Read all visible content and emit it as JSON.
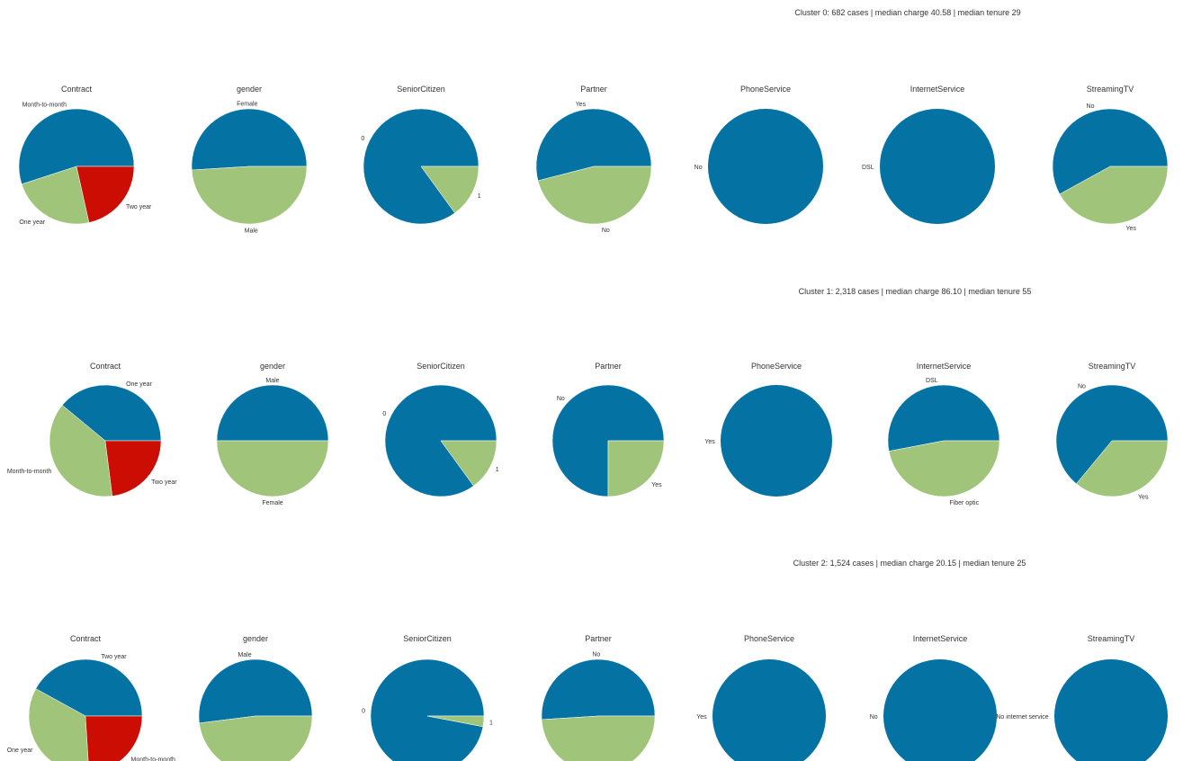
{
  "colors": {
    "blue": "#0473a3",
    "green": "#a0c57a",
    "red": "#cc0d03"
  },
  "chart_data": {
    "type": "pie",
    "clusters": [
      {
        "title": "Cluster 0: 682 cases | median charge 40.58 | median tenure 29",
        "pies": [
          {
            "title": "Contract",
            "slices": [
              {
                "label": "Month-to-month",
                "value": 0.55
              },
              {
                "label": "One year",
                "value": 0.235
              },
              {
                "label": "Two year",
                "value": 0.215
              }
            ]
          },
          {
            "title": "gender",
            "slices": [
              {
                "label": "Female",
                "value": 0.51
              },
              {
                "label": "Male",
                "value": 0.49
              }
            ]
          },
          {
            "title": "SeniorCitizen",
            "slices": [
              {
                "label": "0",
                "value": 0.85
              },
              {
                "label": "1",
                "value": 0.15
              }
            ]
          },
          {
            "title": "Partner",
            "slices": [
              {
                "label": "Yes",
                "value": 0.54
              },
              {
                "label": "No",
                "value": 0.46
              }
            ]
          },
          {
            "title": "PhoneService",
            "slices": [
              {
                "label": "No",
                "value": 1.0
              }
            ]
          },
          {
            "title": "InternetService",
            "slices": [
              {
                "label": "DSL",
                "value": 1.0
              }
            ]
          },
          {
            "title": "StreamingTV",
            "slices": [
              {
                "label": "No",
                "value": 0.58
              },
              {
                "label": "Yes",
                "value": 0.42
              }
            ]
          }
        ]
      },
      {
        "title": "Cluster 1: 2,318 cases | median charge 86.10 | median tenure 55",
        "pies": [
          {
            "title": "Contract",
            "slices": [
              {
                "label": "One year",
                "value": 0.39
              },
              {
                "label": "Month-to-month",
                "value": 0.38
              },
              {
                "label": "Two year",
                "value": 0.23
              }
            ]
          },
          {
            "title": "gender",
            "slices": [
              {
                "label": "Male",
                "value": 0.5
              },
              {
                "label": "Female",
                "value": 0.5
              }
            ]
          },
          {
            "title": "SeniorCitizen",
            "slices": [
              {
                "label": "0",
                "value": 0.85
              },
              {
                "label": "1",
                "value": 0.15
              }
            ]
          },
          {
            "title": "Partner",
            "slices": [
              {
                "label": "No",
                "value": 0.75
              },
              {
                "label": "Yes",
                "value": 0.25
              }
            ]
          },
          {
            "title": "PhoneService",
            "slices": [
              {
                "label": "Yes",
                "value": 1.0
              }
            ]
          },
          {
            "title": "InternetService",
            "slices": [
              {
                "label": "DSL",
                "value": 0.53
              },
              {
                "label": "Fiber optic",
                "value": 0.47
              }
            ]
          },
          {
            "title": "StreamingTV",
            "slices": [
              {
                "label": "No",
                "value": 0.64
              },
              {
                "label": "Yes",
                "value": 0.36
              }
            ]
          }
        ]
      },
      {
        "title": "Cluster 2: 1,524 cases | median charge 20.15 | median tenure 25",
        "pies": [
          {
            "title": "Contract",
            "slices": [
              {
                "label": "Two year",
                "value": 0.42
              },
              {
                "label": "One year",
                "value": 0.34
              },
              {
                "label": "Month-to-month",
                "value": 0.24
              }
            ]
          },
          {
            "title": "gender",
            "slices": [
              {
                "label": "Male",
                "value": 0.52
              },
              {
                "label": "",
                "value": 0.48
              }
            ]
          },
          {
            "title": "SeniorCitizen",
            "slices": [
              {
                "label": "0",
                "value": 0.97
              },
              {
                "label": "1",
                "value": 0.03
              }
            ]
          },
          {
            "title": "Partner",
            "slices": [
              {
                "label": "No",
                "value": 0.51
              },
              {
                "label": "",
                "value": 0.49
              }
            ]
          },
          {
            "title": "PhoneService",
            "slices": [
              {
                "label": "Yes",
                "value": 1.0
              }
            ]
          },
          {
            "title": "InternetService",
            "slices": [
              {
                "label": "No",
                "value": 1.0
              }
            ]
          },
          {
            "title": "StreamingTV",
            "slices": [
              {
                "label": "No internet service",
                "value": 1.0
              }
            ]
          }
        ]
      }
    ]
  }
}
